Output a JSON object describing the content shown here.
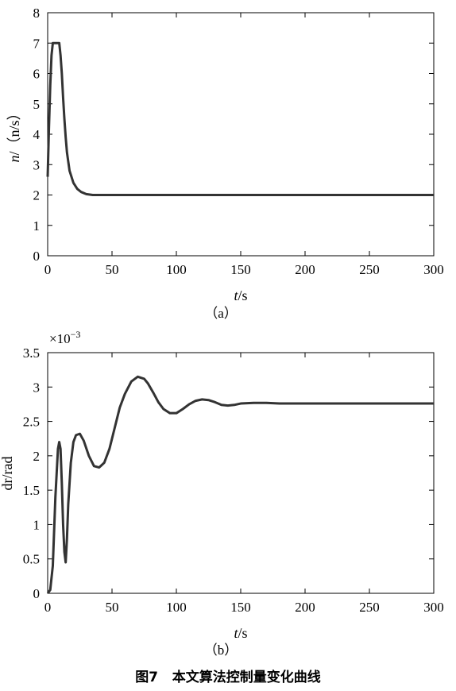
{
  "caption": {
    "number": "图7",
    "title": "本文算法控制量变化曲线"
  },
  "chart_data": [
    {
      "type": "line",
      "panel_label": "（a）",
      "xlabel_var": "t",
      "xlabel_unit": "/s",
      "ylabel_var": "n",
      "ylabel_unit": "/（n/s）",
      "xlim": [
        0,
        300
      ],
      "ylim": [
        0,
        8
      ],
      "xticks": [
        "0",
        "50",
        "100",
        "150",
        "200",
        "250",
        "300"
      ],
      "yticks": [
        "0",
        "1",
        "2",
        "3",
        "4",
        "5",
        "6",
        "7",
        "8"
      ],
      "grid": false,
      "series": [
        {
          "x": [
            0,
            1,
            2,
            3,
            4,
            5,
            6,
            7,
            8,
            9,
            10,
            11,
            12,
            13,
            14,
            15,
            17,
            20,
            23,
            26,
            30,
            35,
            40,
            50,
            100,
            150,
            200,
            250,
            300
          ],
          "y": [
            2.6,
            4.2,
            5.6,
            6.6,
            7.0,
            7.0,
            7.0,
            7.0,
            7.0,
            7.0,
            6.6,
            6.0,
            5.2,
            4.5,
            3.9,
            3.4,
            2.8,
            2.4,
            2.2,
            2.1,
            2.03,
            2.0,
            2.0,
            2.0,
            2.0,
            2.0,
            2.0,
            2.0,
            2.0
          ]
        }
      ]
    },
    {
      "type": "line",
      "panel_label": "（b）",
      "xlabel_var": "t",
      "xlabel_unit": "/s",
      "ylabel_var": "dr",
      "ylabel_unit": "/rad",
      "scale_label": "×10",
      "scale_exp": "−3",
      "xlim": [
        0,
        300
      ],
      "ylim": [
        0,
        3.5
      ],
      "xticks": [
        "0",
        "50",
        "100",
        "150",
        "200",
        "250",
        "300"
      ],
      "yticks": [
        "0",
        "0.5",
        "1",
        "1.5",
        "2",
        "2.5",
        "3",
        "3.5"
      ],
      "grid": false,
      "series": [
        {
          "x": [
            0,
            2,
            4,
            6,
            8,
            9,
            10,
            11,
            12,
            13,
            14,
            15,
            16,
            18,
            20,
            22,
            25,
            28,
            32,
            36,
            40,
            44,
            48,
            52,
            56,
            60,
            65,
            70,
            75,
            78,
            82,
            86,
            90,
            95,
            100,
            105,
            110,
            115,
            120,
            125,
            130,
            135,
            140,
            145,
            150,
            160,
            170,
            180,
            200,
            250,
            300
          ],
          "y": [
            0.0,
            0.05,
            0.4,
            1.4,
            2.1,
            2.2,
            2.1,
            1.6,
            1.0,
            0.6,
            0.45,
            0.8,
            1.3,
            1.9,
            2.2,
            2.3,
            2.32,
            2.22,
            2.0,
            1.85,
            1.83,
            1.9,
            2.1,
            2.4,
            2.7,
            2.9,
            3.08,
            3.15,
            3.12,
            3.05,
            2.92,
            2.78,
            2.68,
            2.62,
            2.62,
            2.68,
            2.75,
            2.8,
            2.82,
            2.81,
            2.78,
            2.74,
            2.73,
            2.74,
            2.76,
            2.77,
            2.77,
            2.76,
            2.76,
            2.76,
            2.76
          ]
        }
      ]
    }
  ]
}
